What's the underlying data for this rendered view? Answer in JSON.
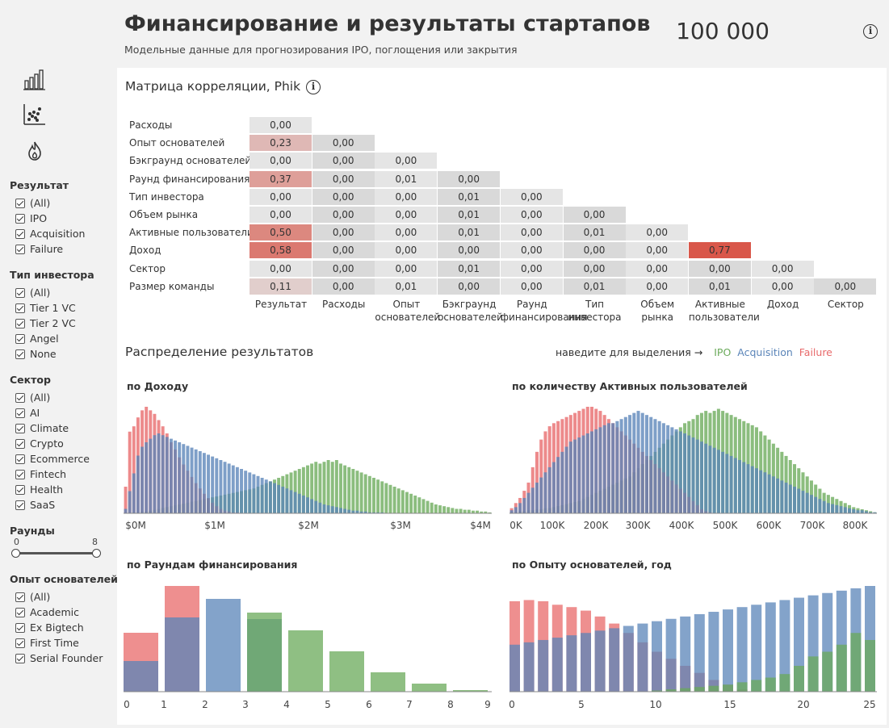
{
  "header": {
    "title": "Финансирование и результаты стартапов",
    "subtitle": "Модельные данные для прогнозирования IPO, поглощения или закрытия",
    "kpi": "100 000",
    "info": "i"
  },
  "colors": {
    "ipo": "#6aaa5a",
    "acquisition": "#5a84b8",
    "failure": "#e8696a",
    "overlap": "#6b6d9e",
    "overlap2": "#4f7f96",
    "cell_base": "#e2e2e2",
    "cell_hi": "#d9574a"
  },
  "sidebar": {
    "nav_icons": [
      "bar-chart-icon",
      "scatter-icon",
      "flame-icon"
    ],
    "filters": [
      {
        "title": "Результат",
        "items": [
          "(All)",
          "IPO",
          "Acquisition",
          "Failure"
        ]
      },
      {
        "title": "Тип инвестора",
        "items": [
          "(All)",
          "Tier 1 VC",
          "Tier 2 VC",
          "Angel",
          "None"
        ]
      },
      {
        "title": "Сектор",
        "items": [
          "(All)",
          "AI",
          "Climate",
          "Crypto",
          "Ecommerce",
          "Fintech",
          "Health",
          "SaaS"
        ]
      }
    ],
    "rounds": {
      "title": "Раунды",
      "min": "0",
      "max": "8"
    },
    "experience": {
      "title": "Опыт основателей",
      "items": [
        "(All)",
        "Academic",
        "Ex Bigtech",
        "First Time",
        "Serial Founder"
      ]
    }
  },
  "matrix": {
    "title": "Матрица корреляции, Phik",
    "rows": [
      "Расходы",
      "Опыт основателей",
      "Бэкграунд основателей",
      "Раунд финансирования",
      "Тип инвестора",
      "Объем рынка",
      "Активные пользователи",
      "Доход",
      "Сектор",
      "Размер команды"
    ],
    "cols": [
      "Результат",
      "Расходы",
      "Опыт основателей",
      "Бэкграунд основателей",
      "Раунд финансирования",
      "Тип инвестора",
      "Объем рынка",
      "Активные пользователи",
      "Доход",
      "Сектор"
    ],
    "values": [
      [
        "0,00"
      ],
      [
        "0,23",
        "0,00"
      ],
      [
        "0,00",
        "0,00",
        "0,00"
      ],
      [
        "0,37",
        "0,00",
        "0,01",
        "0,00"
      ],
      [
        "0,00",
        "0,00",
        "0,00",
        "0,01",
        "0,00"
      ],
      [
        "0,00",
        "0,00",
        "0,00",
        "0,01",
        "0,00",
        "0,00"
      ],
      [
        "0,50",
        "0,00",
        "0,00",
        "0,01",
        "0,00",
        "0,01",
        "0,00"
      ],
      [
        "0,58",
        "0,00",
        "0,00",
        "0,00",
        "0,00",
        "0,00",
        "0,00",
        "0,77"
      ],
      [
        "0,00",
        "0,00",
        "0,00",
        "0,01",
        "0,00",
        "0,00",
        "0,00",
        "0,00",
        "0,00"
      ],
      [
        "0,11",
        "0,00",
        "0,01",
        "0,00",
        "0,00",
        "0,01",
        "0,00",
        "0,01",
        "0,00",
        "0,00"
      ]
    ]
  },
  "distribution": {
    "title": "Распределение результатов",
    "hover_hint": "наведите для выделения →",
    "legend": [
      "IPO",
      "Acquisition",
      "Failure"
    ]
  },
  "chart_data": [
    {
      "type": "histogram",
      "title": "по Доходу",
      "x_ticks": [
        "$0M",
        "$1M",
        "$2M",
        "$3M",
        "$4M"
      ],
      "series": [
        {
          "name": "Failure",
          "values": [
            30,
            92,
            98,
            108,
            116,
            120,
            116,
            112,
            105,
            98,
            90,
            80,
            72,
            63,
            55,
            48,
            41,
            34,
            28,
            22,
            17,
            12,
            8,
            5,
            3,
            2,
            1,
            1,
            0,
            0,
            0,
            0,
            0,
            0,
            0,
            0,
            0,
            0,
            0,
            0,
            0,
            0,
            0,
            0,
            0,
            0,
            0,
            0,
            0,
            0,
            0,
            0,
            0,
            0,
            0,
            0,
            0,
            0,
            0,
            0,
            0,
            0,
            0,
            0,
            0,
            0,
            0,
            0,
            0,
            0,
            0,
            0,
            0,
            0,
            0,
            0,
            0,
            0,
            0,
            0,
            0,
            0,
            0,
            0,
            0,
            0,
            0,
            0,
            0
          ]
        },
        {
          "name": "Acquisition",
          "values": [
            5,
            25,
            45,
            65,
            75,
            80,
            84,
            88,
            90,
            88,
            86,
            84,
            82,
            80,
            78,
            76,
            74,
            72,
            70,
            68,
            66,
            64,
            62,
            60,
            58,
            56,
            54,
            52,
            50,
            48,
            46,
            44,
            42,
            40,
            38,
            36,
            34,
            32,
            30,
            28,
            26,
            24,
            22,
            20,
            18,
            16,
            14,
            12,
            10,
            9,
            8,
            7,
            6,
            5,
            4,
            3,
            3,
            2,
            2,
            1,
            1,
            1,
            1,
            0,
            0,
            0,
            0,
            0,
            0,
            0,
            0,
            0,
            0,
            0,
            0,
            0,
            0,
            0,
            0,
            0,
            0,
            0,
            0,
            0,
            0,
            0,
            0,
            0,
            0
          ]
        },
        {
          "name": "IPO",
          "values": [
            0,
            0,
            1,
            1,
            2,
            2,
            3,
            4,
            5,
            6,
            7,
            8,
            9,
            10,
            11,
            12,
            13,
            14,
            15,
            16,
            17,
            18,
            19,
            20,
            21,
            22,
            23,
            24,
            25,
            26,
            27,
            28,
            30,
            32,
            34,
            36,
            38,
            40,
            42,
            44,
            46,
            48,
            50,
            52,
            54,
            56,
            58,
            56,
            58,
            60,
            58,
            60,
            56,
            54,
            52,
            50,
            48,
            46,
            44,
            42,
            40,
            38,
            36,
            34,
            32,
            30,
            28,
            26,
            24,
            22,
            20,
            18,
            16,
            14,
            12,
            10,
            9,
            8,
            7,
            6,
            5,
            5,
            4,
            4,
            3,
            3,
            2,
            2,
            1
          ]
        }
      ]
    },
    {
      "type": "histogram",
      "title": "по количеству Активных пользователей",
      "x_ticks": [
        "0K",
        "100K",
        "200K",
        "300K",
        "400K",
        "500K",
        "600K",
        "700K",
        "800K"
      ],
      "series": [
        {
          "name": "Failure",
          "values": [
            5,
            10,
            15,
            22,
            30,
            45,
            60,
            72,
            80,
            85,
            88,
            90,
            92,
            94,
            96,
            98,
            100,
            102,
            104,
            104,
            102,
            100,
            96,
            92,
            88,
            84,
            80,
            76,
            72,
            68,
            64,
            60,
            56,
            52,
            48,
            44,
            40,
            36,
            32,
            28,
            24,
            20,
            16,
            12,
            8,
            4,
            2,
            1,
            0,
            0,
            0,
            0,
            0,
            0,
            0,
            0,
            0,
            0,
            0,
            0,
            0,
            0,
            0,
            0,
            0,
            0,
            0,
            0,
            0,
            0,
            0,
            0,
            0,
            0,
            0,
            0,
            0,
            0,
            0,
            0,
            0,
            0,
            0,
            0,
            0,
            0,
            0
          ]
        },
        {
          "name": "Acquisition",
          "values": [
            3,
            6,
            10,
            15,
            20,
            25,
            30,
            35,
            40,
            45,
            50,
            55,
            60,
            65,
            70,
            72,
            74,
            76,
            78,
            80,
            82,
            84,
            86,
            88,
            88,
            90,
            92,
            94,
            96,
            98,
            100,
            98,
            96,
            94,
            92,
            90,
            88,
            86,
            84,
            82,
            80,
            78,
            76,
            74,
            72,
            70,
            68,
            66,
            64,
            62,
            60,
            58,
            56,
            54,
            52,
            50,
            48,
            46,
            44,
            42,
            40,
            38,
            36,
            34,
            32,
            30,
            28,
            26,
            24,
            22,
            20,
            18,
            16,
            14,
            12,
            10,
            9,
            8,
            7,
            6,
            5,
            4,
            3,
            3,
            2,
            1,
            1
          ]
        },
        {
          "name": "IPO",
          "values": [
            1,
            1,
            2,
            2,
            3,
            3,
            4,
            4,
            5,
            5,
            6,
            7,
            8,
            9,
            10,
            11,
            12,
            14,
            16,
            18,
            20,
            22,
            24,
            26,
            28,
            30,
            32,
            34,
            36,
            40,
            44,
            48,
            52,
            56,
            60,
            64,
            68,
            72,
            76,
            80,
            84,
            88,
            90,
            92,
            96,
            98,
            100,
            98,
            100,
            102,
            100,
            98,
            96,
            94,
            92,
            90,
            88,
            86,
            84,
            80,
            76,
            72,
            68,
            64,
            60,
            56,
            52,
            48,
            44,
            40,
            36,
            32,
            28,
            24,
            20,
            18,
            16,
            14,
            12,
            10,
            8,
            6,
            5,
            4,
            3,
            2,
            1
          ]
        }
      ]
    },
    {
      "type": "bar",
      "title": "по Раундам финансирования",
      "categories": [
        "0",
        "1",
        "2",
        "3",
        "4",
        "5",
        "6",
        "7",
        "8",
        "9"
      ],
      "series": [
        {
          "name": "Failure",
          "values": [
            73,
            131,
            0,
            0,
            0,
            0,
            0,
            0,
            0,
            0
          ]
        },
        {
          "name": "Acquisition",
          "values": [
            38,
            92,
            115,
            90,
            0,
            0,
            0,
            0,
            0,
            0
          ]
        },
        {
          "name": "IPO",
          "values": [
            0,
            0,
            0,
            98,
            76,
            50,
            24,
            10,
            2,
            0
          ]
        }
      ]
    },
    {
      "type": "bar",
      "title": "по Опыту основателей, год",
      "categories": [
        "0",
        "1",
        "2",
        "3",
        "4",
        "5",
        "6",
        "7",
        "8",
        "9",
        "10",
        "11",
        "12",
        "13",
        "14",
        "15",
        "16",
        "17",
        "18",
        "19",
        "20",
        "21",
        "22",
        "23",
        "24",
        "25"
      ],
      "x_ticks": [
        "0",
        "5",
        "10",
        "15",
        "20",
        "25"
      ],
      "series": [
        {
          "name": "Failure",
          "values": [
            77,
            78,
            77,
            74,
            72,
            69,
            64,
            58,
            50,
            42,
            34,
            28,
            22,
            16,
            10,
            6,
            2,
            0,
            0,
            0,
            0,
            0,
            0,
            0,
            0,
            0
          ]
        },
        {
          "name": "Acquisition",
          "values": [
            40,
            42,
            44,
            46,
            48,
            50,
            52,
            54,
            56,
            58,
            60,
            62,
            64,
            66,
            68,
            70,
            72,
            74,
            76,
            78,
            80,
            82,
            84,
            86,
            88,
            90
          ]
        },
        {
          "name": "IPO",
          "values": [
            0,
            0,
            0,
            0,
            0,
            0,
            0,
            0,
            0,
            0,
            1,
            2,
            3,
            4,
            5,
            6,
            8,
            10,
            12,
            15,
            22,
            30,
            34,
            40,
            50,
            44
          ]
        }
      ]
    }
  ]
}
